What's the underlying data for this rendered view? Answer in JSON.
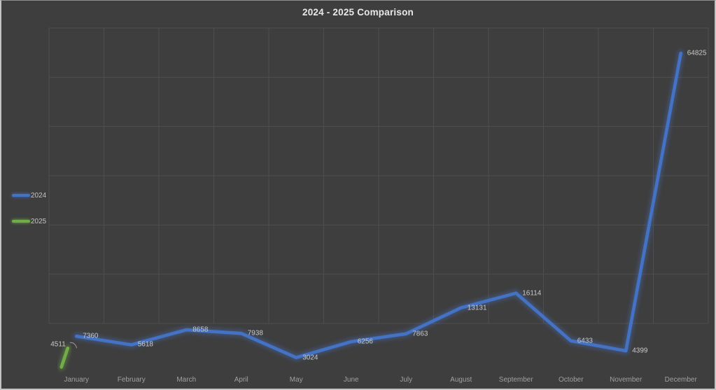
{
  "title": "2024 - 2025 Comparison",
  "colors": {
    "background": "#3e3e3e",
    "gridline": "#4e4e4e",
    "series_2024": "#4472c4",
    "series_2025": "#70ad47",
    "title_text": "#e9e9e9",
    "data_label_text": "#c9c9c9",
    "axis_label_text": "#a0a0a0",
    "frame_border": "#c4c4c4"
  },
  "legend": {
    "position": "left",
    "items": [
      {
        "label": "2024",
        "color": "#4472c4"
      },
      {
        "label": "2025",
        "color": "#70ad47"
      }
    ]
  },
  "chart_data": {
    "type": "line",
    "title": "2024 - 2025 Comparison",
    "categories": [
      "January",
      "February",
      "March",
      "April",
      "May",
      "June",
      "July",
      "August",
      "September",
      "October",
      "November",
      "December"
    ],
    "series": [
      {
        "name": "2024",
        "color": "#4472c4",
        "values": [
          7360,
          5618,
          8658,
          7938,
          3024,
          6256,
          7863,
          13131,
          16114,
          6433,
          4399,
          64825
        ]
      },
      {
        "name": "2025",
        "color": "#70ad47",
        "values": [
          4511,
          null,
          null,
          null,
          null,
          null,
          null,
          null,
          null,
          null,
          null,
          null
        ]
      }
    ],
    "xlabel": "",
    "ylabel": "",
    "ylim": [
      0,
      70000
    ],
    "gridline_interval": 10000,
    "grid": true,
    "y_tick_labels_shown": false,
    "data_labels_shown": true,
    "legend_position": "left"
  }
}
